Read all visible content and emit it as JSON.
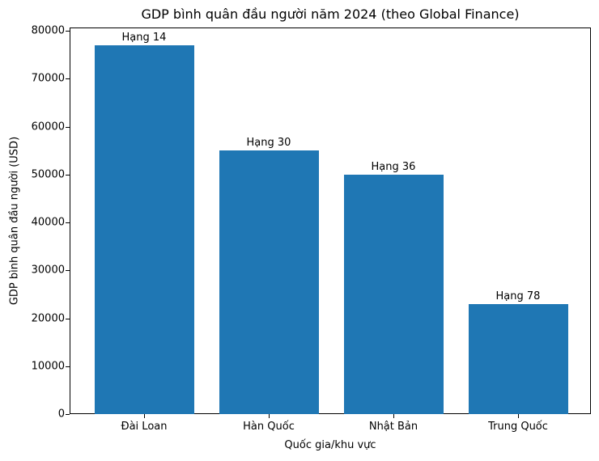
{
  "chart_data": {
    "type": "bar",
    "title": "GDP bình quân đầu người năm 2024 (theo Global Finance)",
    "xlabel": "Quốc gia/khu vực",
    "ylabel": "GDP bình quân đầu người (USD)",
    "categories": [
      "Đài Loan",
      "Hàn Quốc",
      "Nhật Bản",
      "Trung Quốc"
    ],
    "values": [
      77000,
      55000,
      50000,
      23000
    ],
    "annotations": [
      "Hạng 14",
      "Hạng 30",
      "Hạng 36",
      "Hạng 78"
    ],
    "ylim": [
      0,
      80850
    ],
    "yticks": [
      0,
      10000,
      20000,
      30000,
      40000,
      50000,
      60000,
      70000,
      80000
    ],
    "grid": false,
    "bar_color": "#1f77b4"
  }
}
